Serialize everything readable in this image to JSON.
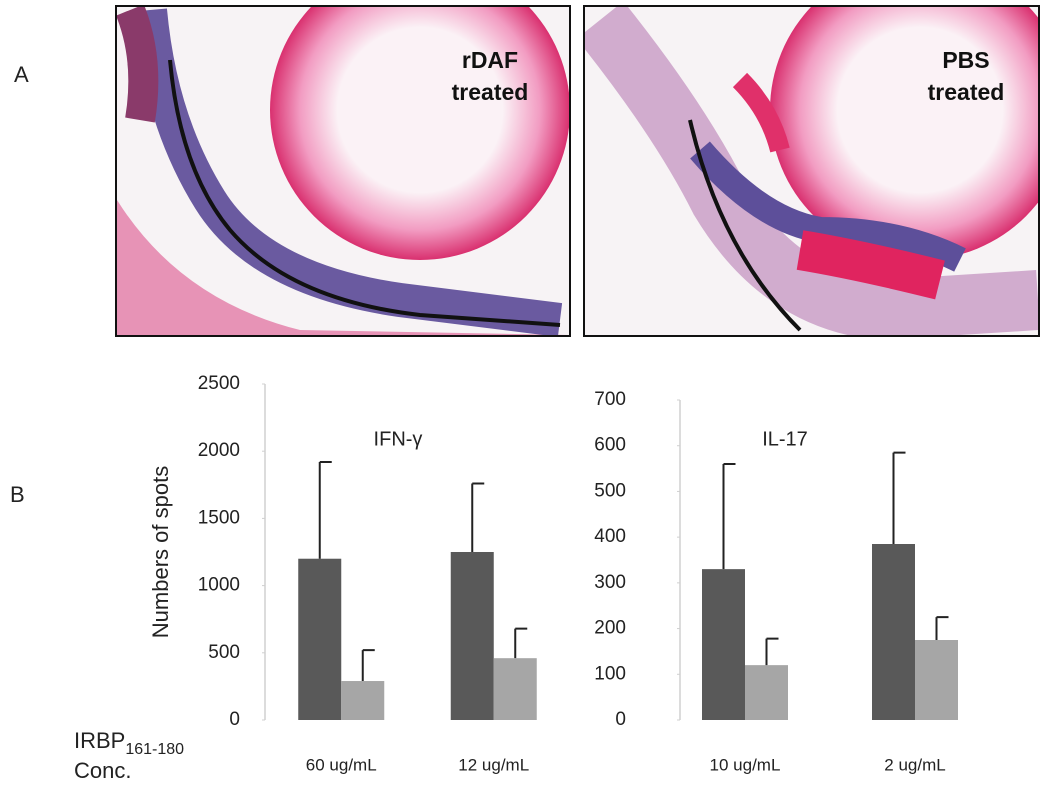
{
  "panels": {
    "a_label": "A",
    "b_label": "B",
    "left_image_label": [
      "rDAF",
      "treated"
    ],
    "right_image_label": [
      "PBS",
      "treated"
    ],
    "irbp_label": "IRBP",
    "irbp_subscript": "161-180",
    "conc_label": "Conc."
  },
  "chart_data": [
    {
      "type": "bar",
      "title": "IFN-γ",
      "y_label": "Numbers of spots",
      "categories": [
        "60 ug/mL",
        "12 ug/mL"
      ],
      "series": [
        {
          "color": "#595959",
          "values": [
            1200,
            1250
          ],
          "errors": [
            720,
            510
          ]
        },
        {
          "color": "#a6a6a6",
          "values": [
            290,
            460
          ],
          "errors": [
            230,
            220
          ]
        }
      ],
      "ylim": [
        0,
        2500
      ],
      "yticks": [
        0,
        500,
        1000,
        1500,
        2000,
        2500
      ]
    },
    {
      "type": "bar",
      "title": "IL-17",
      "categories": [
        "10 ug/mL",
        "2 ug/mL"
      ],
      "series": [
        {
          "color": "#595959",
          "values": [
            330,
            385
          ],
          "errors": [
            230,
            200
          ]
        },
        {
          "color": "#a6a6a6",
          "values": [
            120,
            175
          ],
          "errors": [
            58,
            50
          ]
        }
      ],
      "ylim": [
        0,
        700
      ],
      "yticks": [
        0,
        100,
        200,
        300,
        400,
        500,
        600,
        700
      ]
    }
  ]
}
